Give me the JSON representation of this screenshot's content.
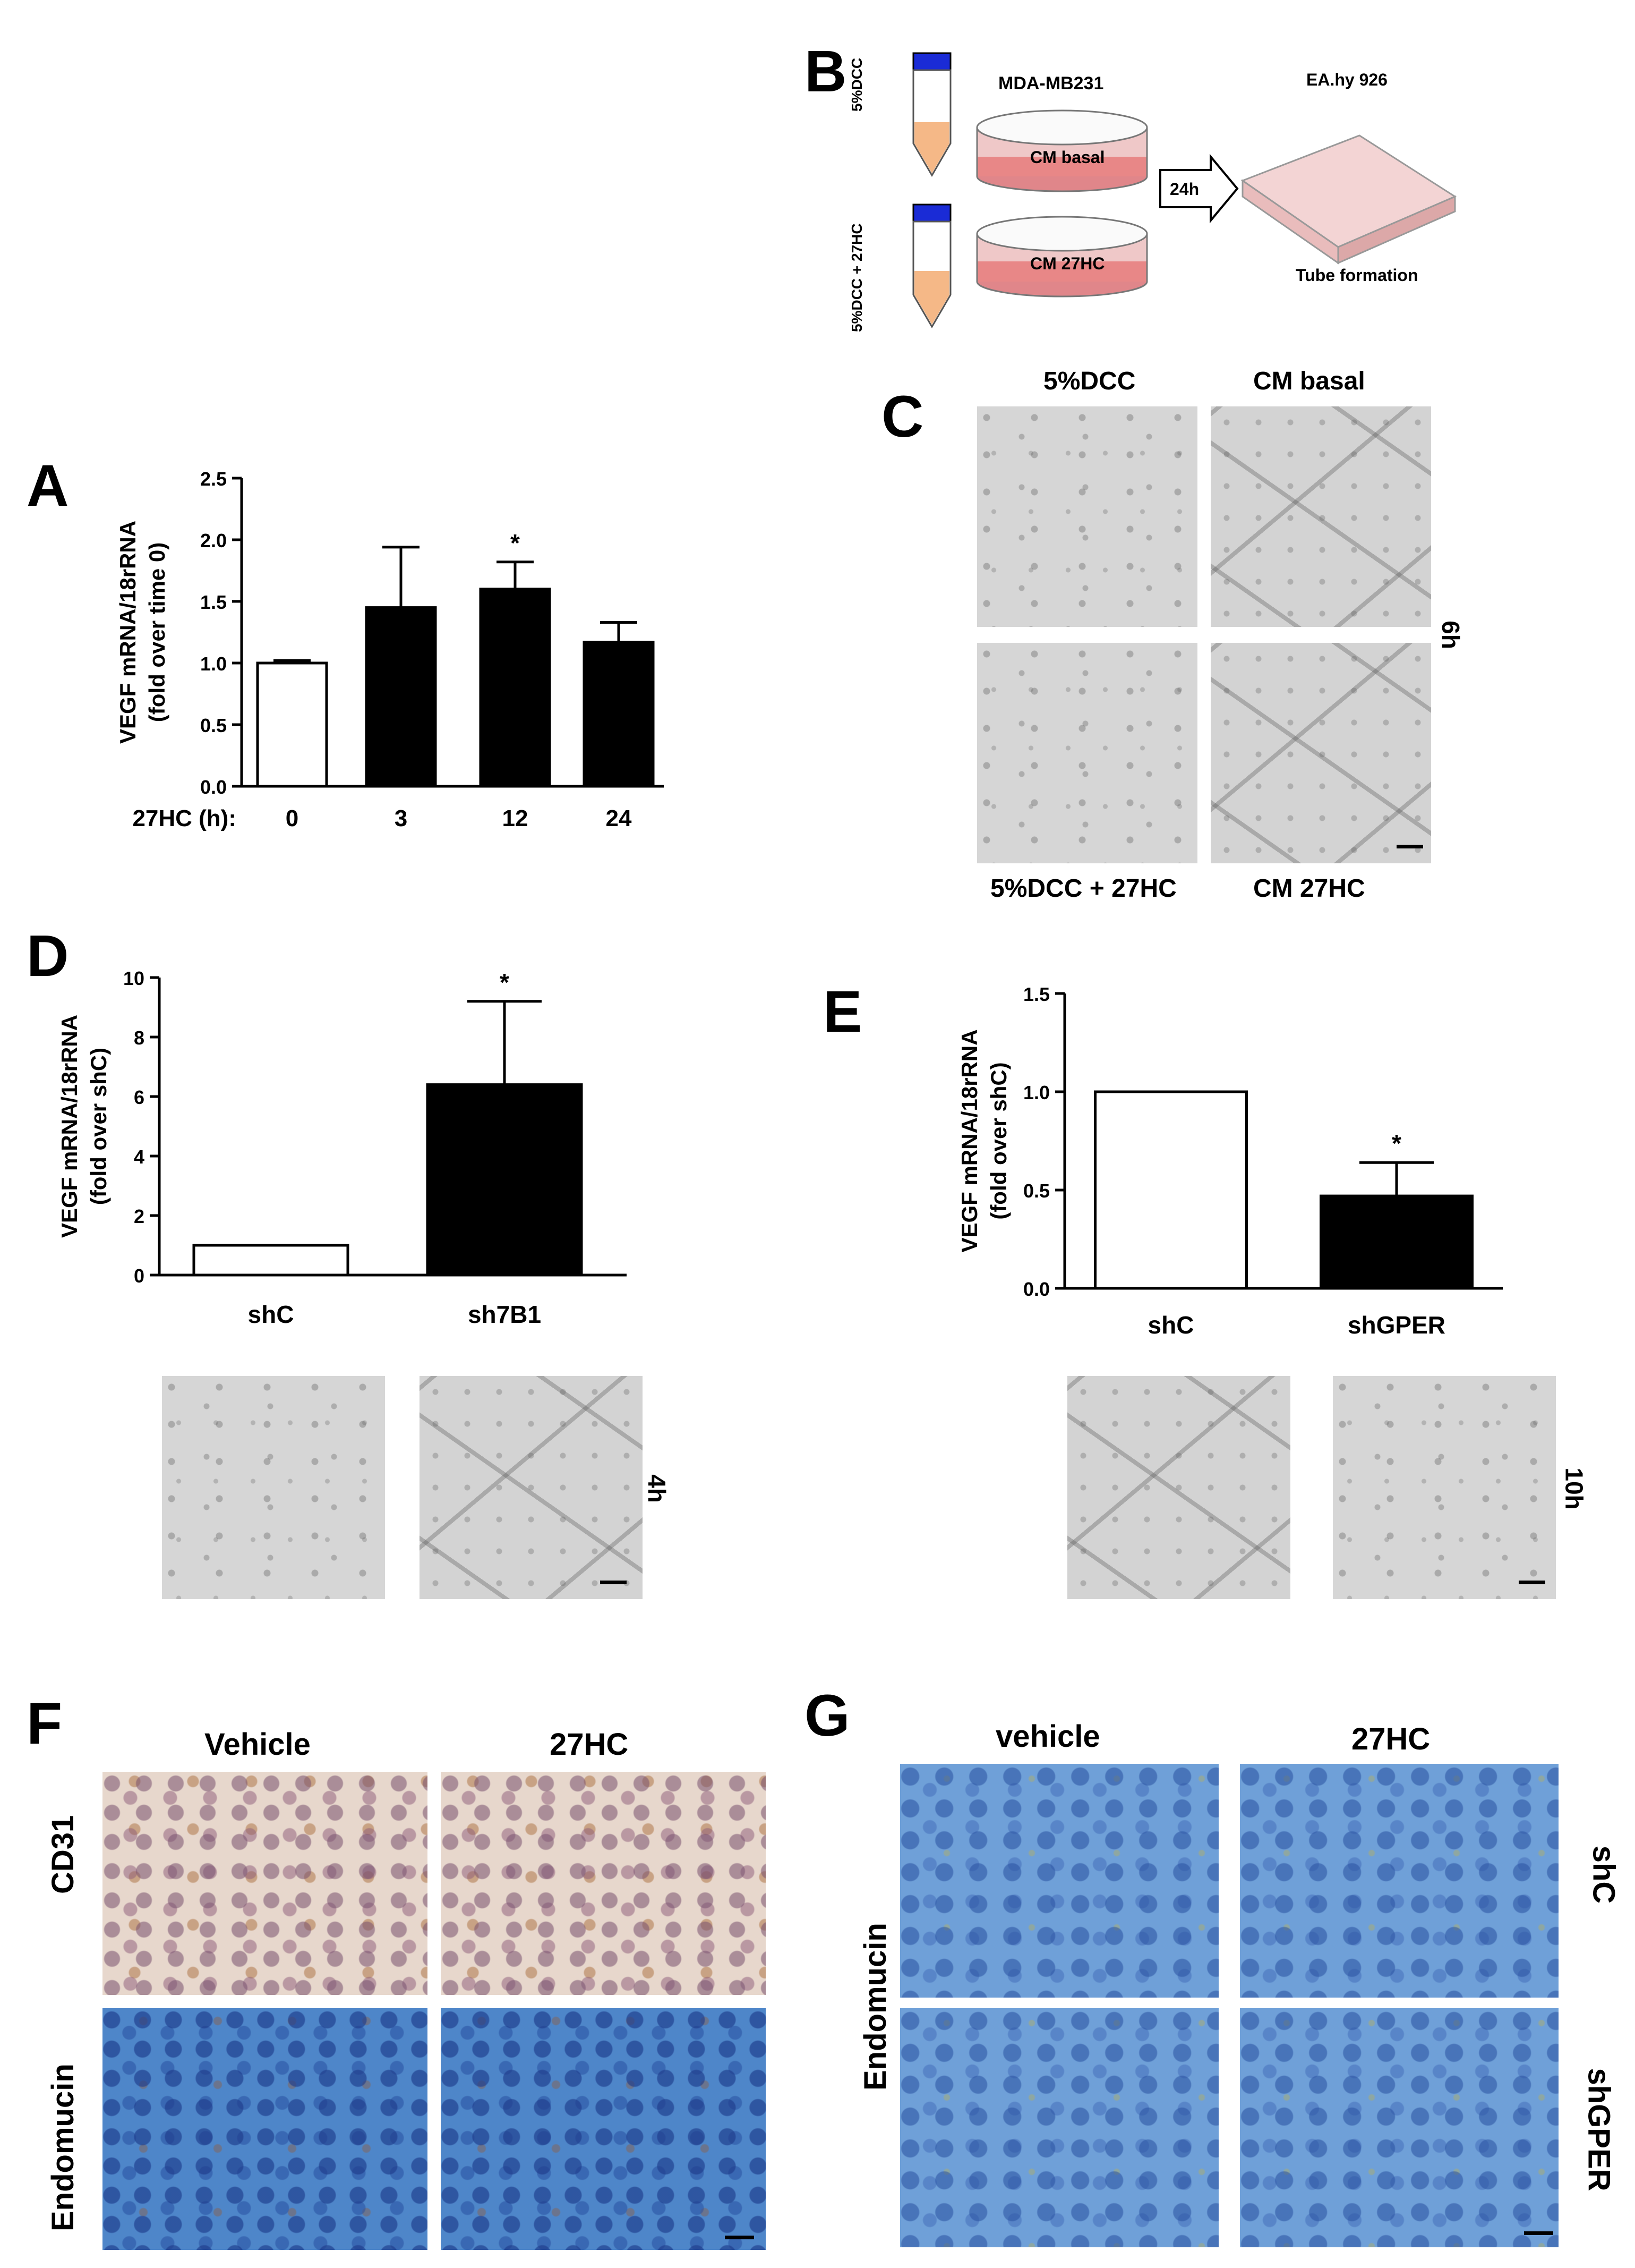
{
  "panels": {
    "A": "A",
    "B": "B",
    "C": "C",
    "D": "D",
    "E": "E",
    "F": "F",
    "G": "G"
  },
  "panelB": {
    "tube1": "5%DCC",
    "tube2": "5%DCC + 27HC",
    "cell_line": "MDA-MB231",
    "dish1": "CM basal",
    "dish2": "CM 27HC",
    "arrow": "24h",
    "target_line": "EA.hy 926",
    "assay": "Tube formation"
  },
  "panelC": {
    "top_left": "5%DCC",
    "top_right": "CM basal",
    "bottom_left": "5%DCC + 27HC",
    "bottom_right": "CM 27HC",
    "time": "6h"
  },
  "panelD_images": {
    "time": "4h"
  },
  "panelE_images": {
    "time": "10h"
  },
  "panelF": {
    "col1": "Vehicle",
    "col2": "27HC",
    "row1": "CD31",
    "row2": "Endomucin"
  },
  "panelG": {
    "col1": "vehicle",
    "col2": "27HC",
    "row1": "shC",
    "row2": "shGPER",
    "stain": "Endomucin"
  },
  "chart_data": [
    {
      "panel": "A",
      "type": "bar",
      "categories": [
        "0",
        "3",
        "12",
        "24"
      ],
      "values": [
        1.0,
        1.45,
        1.6,
        1.17
      ],
      "errors": [
        0.02,
        0.49,
        0.22,
        0.16
      ],
      "fills": [
        "#ffffff",
        "#000000",
        "#000000",
        "#000000"
      ],
      "significance": [
        "",
        "",
        "*",
        ""
      ],
      "ylabel_lines": [
        "VEGF mRNA/18rRNA",
        "(fold over time 0)"
      ],
      "xlabel": "27HC (h):",
      "ylim": [
        0,
        2.5
      ],
      "yticks": [
        "0.0",
        "0.5",
        "1.0",
        "1.5",
        "2.0",
        "2.5"
      ]
    },
    {
      "panel": "D",
      "type": "bar",
      "categories": [
        "shC",
        "sh7B1"
      ],
      "values": [
        1.0,
        6.4
      ],
      "errors": [
        0,
        2.8
      ],
      "fills": [
        "#ffffff",
        "#000000"
      ],
      "significance": [
        "",
        "*"
      ],
      "ylabel_lines": [
        "VEGF mRNA/18rRNA",
        "(fold over shC)"
      ],
      "ylim": [
        0,
        10
      ],
      "yticks": [
        "0",
        "2",
        "4",
        "6",
        "8",
        "10"
      ]
    },
    {
      "panel": "E",
      "type": "bar",
      "categories": [
        "shC",
        "shGPER"
      ],
      "values": [
        1.0,
        0.47
      ],
      "errors": [
        0,
        0.17
      ],
      "fills": [
        "#ffffff",
        "#000000"
      ],
      "significance": [
        "",
        "*"
      ],
      "ylabel_lines": [
        "VEGF mRNA/18rRNA",
        "(fold over shC)"
      ],
      "ylim": [
        0,
        1.5
      ],
      "yticks": [
        "0.0",
        "0.5",
        "1.0",
        "1.5"
      ]
    }
  ]
}
